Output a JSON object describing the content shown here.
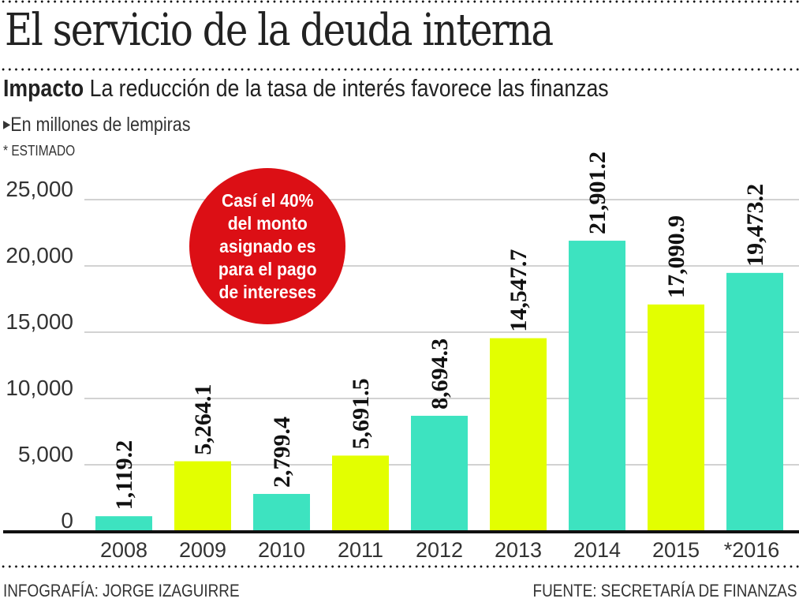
{
  "header": {
    "title": "El servicio de la deuda interna",
    "subtitle_bold": "Impacto",
    "subtitle_rest": " La reducción de la tasa de interés favorece las finanzas",
    "units": "En millones de lempiras",
    "note": "* ESTIMADO"
  },
  "callout": {
    "text": "Casí el 40%\ndel monto\nasignado es\npara el pago\nde intereses",
    "color": "#dc0f15"
  },
  "footer": {
    "credit": "INFOGRAFÍA: JORGE IZAGUIRRE",
    "source": "FUENTE: SECRETARÍA DE FINANZAS"
  },
  "chart_data": {
    "type": "bar",
    "title": "El servicio de la deuda interna",
    "xlabel": "",
    "ylabel": "En millones de lempiras",
    "ylim": [
      0,
      25000
    ],
    "yticks": [
      0,
      5000,
      10000,
      15000,
      20000,
      25000
    ],
    "ytick_labels": [
      "0",
      "5,000",
      "10,000",
      "15,000",
      "20,000",
      "25,000"
    ],
    "grid": true,
    "categories": [
      "2008",
      "2009",
      "2010",
      "2011",
      "2012",
      "2013",
      "2014",
      "2015",
      "*2016"
    ],
    "values": [
      1119.2,
      5264.1,
      2799.4,
      5691.5,
      8694.3,
      14547.7,
      21901.2,
      17090.9,
      19473.2
    ],
    "value_labels": [
      "1,119.2",
      "5,264.1",
      "2,799.4",
      "5,691.5",
      "8,694.3",
      "14,547.7",
      "21,901.2",
      "17,090.9",
      "19,473.2"
    ],
    "bar_colors": [
      "#3de3c0",
      "#e3ff00",
      "#3de3c0",
      "#e3ff00",
      "#3de3c0",
      "#e3ff00",
      "#3de3c0",
      "#e3ff00",
      "#3de3c0"
    ],
    "colors": {
      "teal": "#3de3c0",
      "yellow": "#e3ff00",
      "grid": "#b8b8b8",
      "axis": "#111111"
    }
  }
}
